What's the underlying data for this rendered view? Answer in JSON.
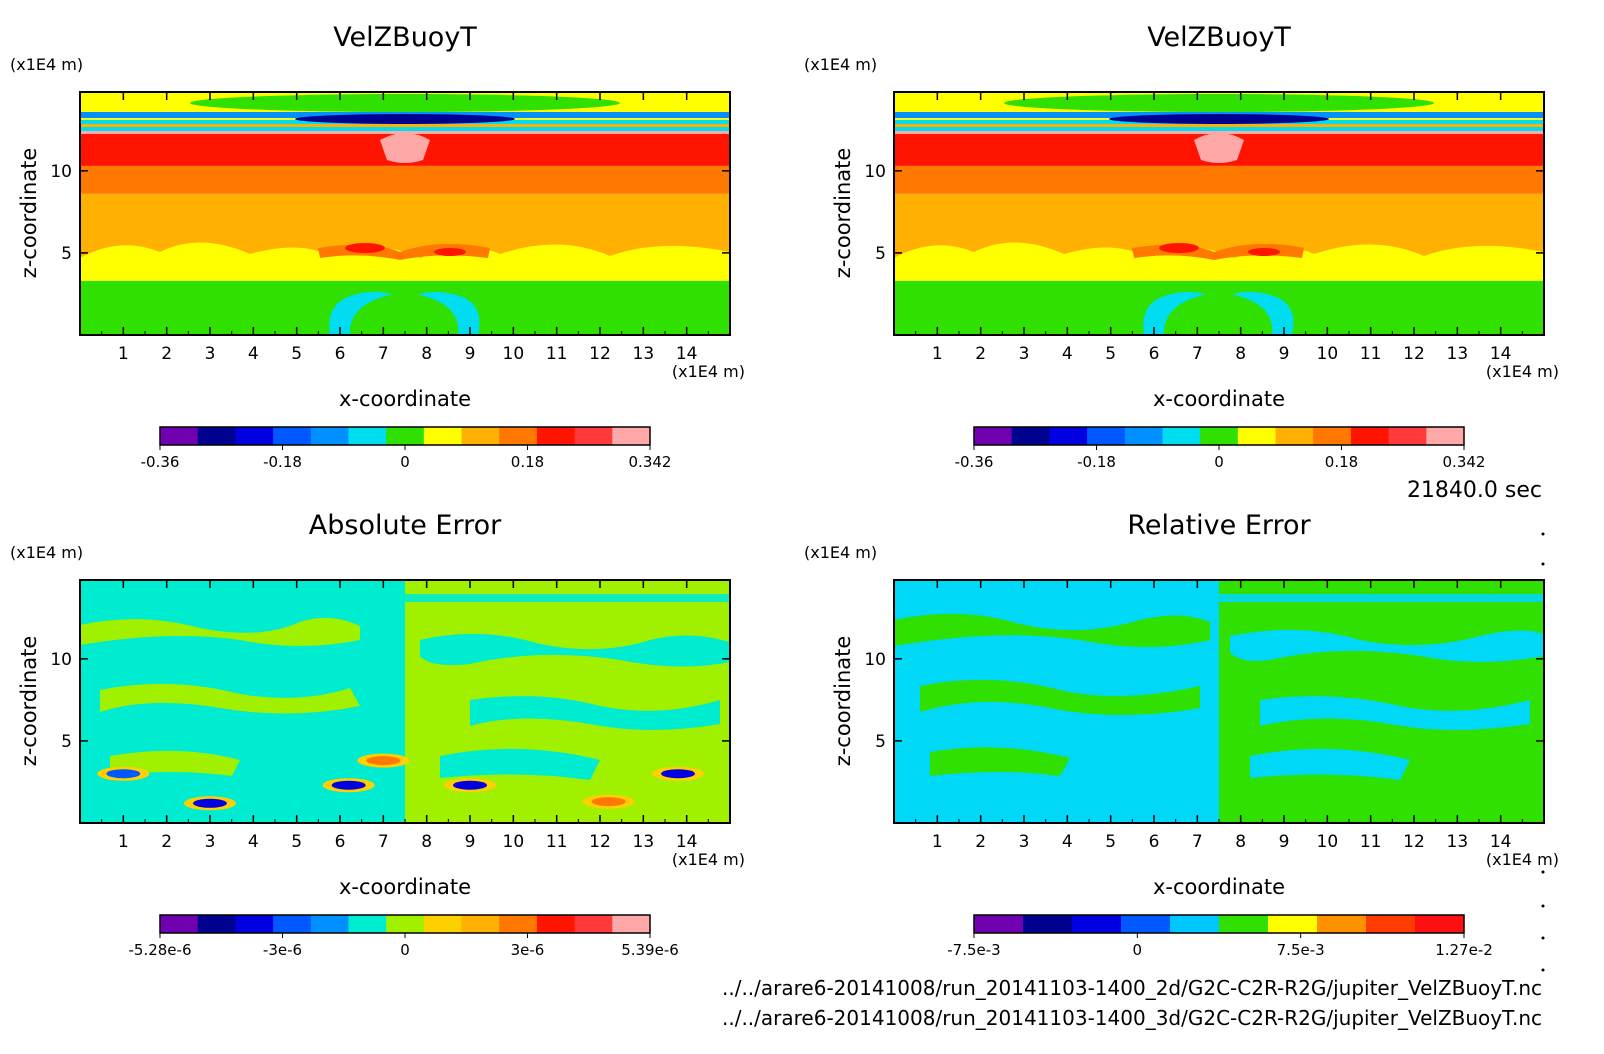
{
  "time_label": "21840.0 sec",
  "footer": {
    "line1": "../../arare6-20141008/run_20141103-1400_2d/G2C-C2R-R2G/jupiter_VelZBuoyT.nc",
    "line2": "../../arare6-20141008/run_20141103-1400_3d/G2C-C2R-R2G/jupiter_VelZBuoyT.nc"
  },
  "chart_data": [
    {
      "type": "heatmap",
      "title": "VelZBuoyT",
      "xlabel": "x-coordinate",
      "ylabel": "z-coordinate",
      "x_unit": "(x1E4 m)",
      "y_unit": "(x1E4 m)",
      "xlim": [
        0,
        15
      ],
      "ylim": [
        0,
        14.8
      ],
      "x_ticks": [
        "1",
        "2",
        "3",
        "4",
        "5",
        "6",
        "7",
        "8",
        "9",
        "10",
        "11",
        "12",
        "13",
        "14"
      ],
      "y_ticks": [
        "5",
        "10"
      ],
      "colorbar": {
        "colors": [
          "#7000b0",
          "#000090",
          "#0000e0",
          "#0058ff",
          "#0090ff",
          "#00dcf0",
          "#30e000",
          "#ffff00",
          "#ffb000",
          "#ff7800",
          "#ff1400",
          "#ff3a3a",
          "#ffa8a8"
        ],
        "tick_labels": [
          "-0.36",
          "-0.18",
          "0",
          "0.18",
          "0.342"
        ]
      },
      "bands": [
        {
          "z": [
            0.0,
            3.3
          ],
          "level": "0 to 0.03",
          "color": "#30e000"
        },
        {
          "z": [
            3.3,
            4.3
          ],
          "level": "0.03 to 0.06",
          "color": "#ffff00"
        },
        {
          "z": [
            4.3,
            8.6
          ],
          "level": "0.06 to 0.12",
          "color": "#ffb000"
        },
        {
          "z": [
            8.6,
            10.3
          ],
          "level": "0.12 to 0.18",
          "color": "#ff7800"
        },
        {
          "z": [
            10.3,
            12.4
          ],
          "level": "0.18 to 0.24",
          "color": "#ff1400"
        },
        {
          "z": [
            12.4,
            13.1
          ],
          "level": "-0.06 to 0.06",
          "color": "#00dcf0"
        },
        {
          "z": [
            13.1,
            14.8
          ],
          "level": "0.03 to 0.06",
          "color": "#ffff00"
        }
      ]
    },
    {
      "type": "heatmap",
      "title": "VelZBuoyT",
      "xlabel": "x-coordinate",
      "ylabel": "z-coordinate",
      "x_unit": "(x1E4 m)",
      "y_unit": "(x1E4 m)",
      "xlim": [
        0,
        15
      ],
      "ylim": [
        0,
        14.8
      ],
      "x_ticks": [
        "1",
        "2",
        "3",
        "4",
        "5",
        "6",
        "7",
        "8",
        "9",
        "10",
        "11",
        "12",
        "13",
        "14"
      ],
      "y_ticks": [
        "5",
        "10"
      ],
      "colorbar": {
        "colors": [
          "#7000b0",
          "#000090",
          "#0000e0",
          "#0058ff",
          "#0090ff",
          "#00dcf0",
          "#30e000",
          "#ffff00",
          "#ffb000",
          "#ff7800",
          "#ff1400",
          "#ff3a3a",
          "#ffa8a8"
        ],
        "tick_labels": [
          "-0.36",
          "-0.18",
          "0",
          "0.18",
          "0.342"
        ]
      },
      "bands": [
        {
          "z": [
            0.0,
            3.3
          ],
          "level": "0 to 0.03",
          "color": "#30e000"
        },
        {
          "z": [
            3.3,
            4.3
          ],
          "level": "0.03 to 0.06",
          "color": "#ffff00"
        },
        {
          "z": [
            4.3,
            8.6
          ],
          "level": "0.06 to 0.12",
          "color": "#ffb000"
        },
        {
          "z": [
            8.6,
            10.3
          ],
          "level": "0.12 to 0.18",
          "color": "#ff7800"
        },
        {
          "z": [
            10.3,
            12.4
          ],
          "level": "0.18 to 0.24",
          "color": "#ff1400"
        },
        {
          "z": [
            12.4,
            13.1
          ],
          "level": "-0.06 to 0.06",
          "color": "#00dcf0"
        },
        {
          "z": [
            13.1,
            14.8
          ],
          "level": "0.03 to 0.06",
          "color": "#ffff00"
        }
      ]
    },
    {
      "type": "heatmap",
      "title": "Absolute Error",
      "xlabel": "x-coordinate",
      "ylabel": "z-coordinate",
      "x_unit": "(x1E4 m)",
      "y_unit": "(x1E4 m)",
      "xlim": [
        0,
        15
      ],
      "ylim": [
        0,
        14.8
      ],
      "x_ticks": [
        "1",
        "2",
        "3",
        "4",
        "5",
        "6",
        "7",
        "8",
        "9",
        "10",
        "11",
        "12",
        "13",
        "14"
      ],
      "y_ticks": [
        "5",
        "10"
      ],
      "colorbar": {
        "colors": [
          "#7000b0",
          "#000090",
          "#0000e0",
          "#0058ff",
          "#0090ff",
          "#00ecd0",
          "#a0f000",
          "#ffd000",
          "#ffb000",
          "#ff7800",
          "#ff1400",
          "#ff3a3a",
          "#ffa8a8"
        ],
        "tick_labels": [
          "-5.28e-6",
          "-3e-6",
          "0",
          "3e-6",
          "5.39e-6"
        ]
      },
      "background": {
        "left": "#00ecd0",
        "right": "#a0f000"
      },
      "patches": [
        {
          "x": 3.0,
          "z": 1.2,
          "color": "#0000e0"
        },
        {
          "x": 12.2,
          "z": 1.3,
          "color": "#ff7800"
        },
        {
          "x": 6.2,
          "z": 2.3,
          "color": "#0000e0"
        },
        {
          "x": 9.0,
          "z": 2.3,
          "color": "#0000e0"
        },
        {
          "x": 1.0,
          "z": 3.0,
          "color": "#0058ff"
        },
        {
          "x": 13.8,
          "z": 3.0,
          "color": "#0000e0"
        },
        {
          "x": 7.0,
          "z": 3.8,
          "color": "#ff7800"
        }
      ]
    },
    {
      "type": "heatmap",
      "title": "Relative Error",
      "xlabel": "x-coordinate",
      "ylabel": "z-coordinate",
      "x_unit": "(x1E4 m)",
      "y_unit": "(x1E4 m)",
      "xlim": [
        0,
        15
      ],
      "ylim": [
        0,
        14.8
      ],
      "x_ticks": [
        "1",
        "2",
        "3",
        "4",
        "5",
        "6",
        "7",
        "8",
        "9",
        "10",
        "11",
        "12",
        "13",
        "14"
      ],
      "y_ticks": [
        "5",
        "10"
      ],
      "colorbar": {
        "colors": [
          "#7000b0",
          "#000090",
          "#0000e0",
          "#0058ff",
          "#00c8ff",
          "#30e000",
          "#ffff00",
          "#ff9000",
          "#ff3c00",
          "#ff1010"
        ],
        "tick_labels": [
          "-7.5e-3",
          "0",
          "7.5e-3",
          "1.27e-2"
        ]
      },
      "background": {
        "left": "#00d8f8",
        "right": "#30e000"
      }
    }
  ]
}
